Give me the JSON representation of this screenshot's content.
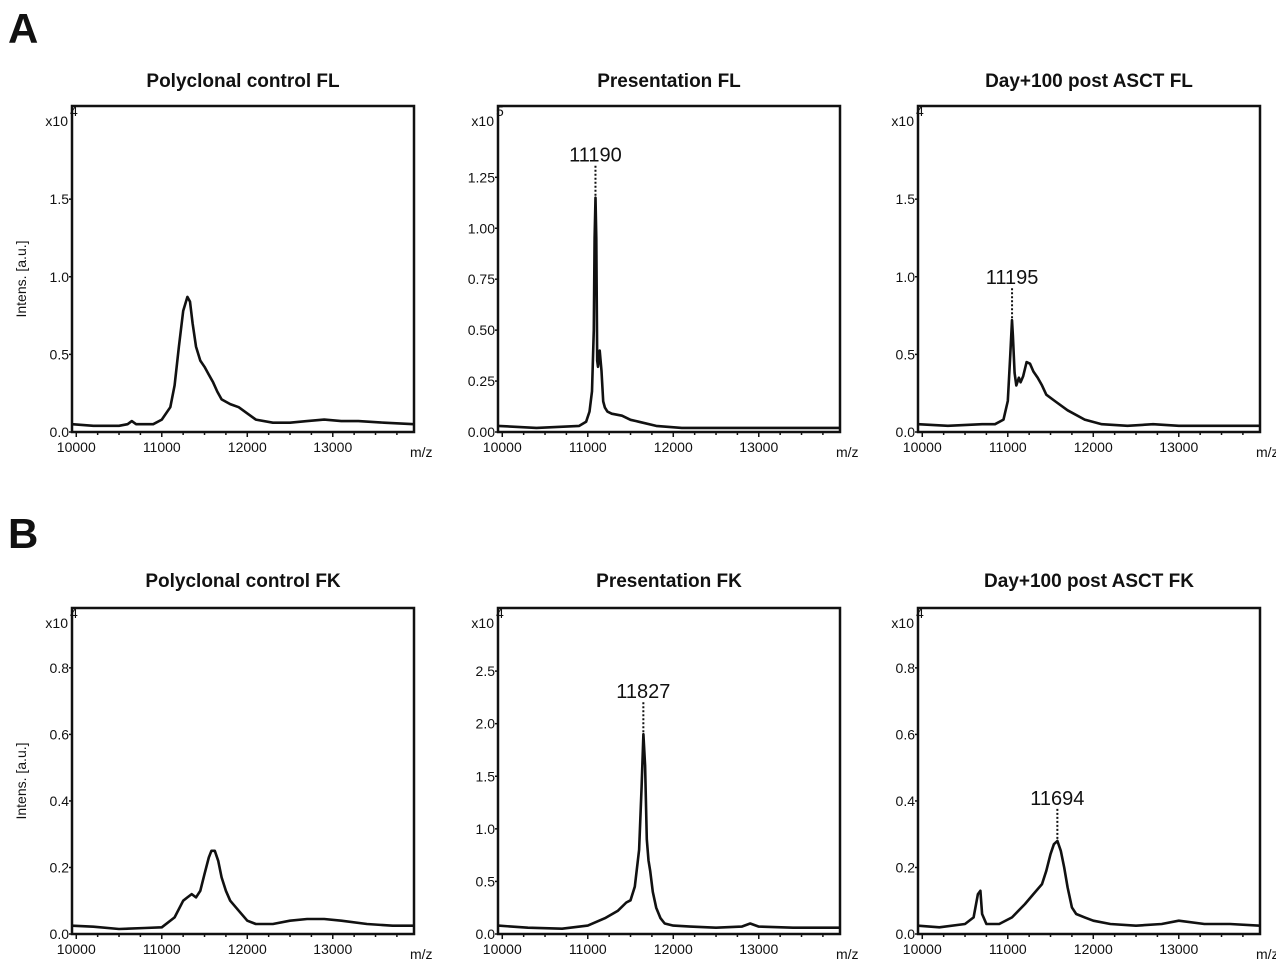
{
  "figure": {
    "panel_labels": [
      "A",
      "B"
    ]
  },
  "chart_data": [
    {
      "type": "line",
      "row": 0,
      "title": "Polyclonal control FL",
      "ylabel": "Intens. [a.u.]",
      "xlabel": "m/z",
      "multiplier": "x10",
      "exponent": "4",
      "xlim": [
        9950,
        13950
      ],
      "ylim": [
        0,
        2.1
      ],
      "xticks": [
        10000,
        11000,
        12000,
        13000
      ],
      "xtick_labels": [
        "10000",
        "11000",
        "12000",
        "13000"
      ],
      "yticks": [
        0,
        0.5,
        1.0,
        1.5
      ],
      "ytick_labels": [
        "0.0",
        "0.5",
        "1.0",
        "1.5"
      ],
      "annotation": null,
      "x": [
        9950,
        10200,
        10500,
        10600,
        10650,
        10700,
        10900,
        11000,
        11100,
        11150,
        11200,
        11250,
        11300,
        11330,
        11360,
        11400,
        11450,
        11500,
        11550,
        11600,
        11650,
        11700,
        11800,
        11900,
        12000,
        12100,
        12300,
        12500,
        12700,
        12900,
        13100,
        13300,
        13600,
        13950
      ],
      "y": [
        0.05,
        0.04,
        0.04,
        0.05,
        0.07,
        0.05,
        0.05,
        0.08,
        0.16,
        0.3,
        0.55,
        0.78,
        0.87,
        0.84,
        0.7,
        0.55,
        0.46,
        0.42,
        0.37,
        0.32,
        0.26,
        0.21,
        0.18,
        0.16,
        0.12,
        0.08,
        0.06,
        0.06,
        0.07,
        0.08,
        0.07,
        0.07,
        0.06,
        0.05
      ]
    },
    {
      "type": "line",
      "row": 0,
      "title": "Presentation FL",
      "ylabel": "",
      "xlabel": "m/z",
      "multiplier": "x10",
      "exponent": "5",
      "xlim": [
        9950,
        13950
      ],
      "ylim": [
        0,
        1.6
      ],
      "xticks": [
        10000,
        11000,
        12000,
        13000
      ],
      "xtick_labels": [
        "10000",
        "11000",
        "12000",
        "13000"
      ],
      "yticks": [
        0,
        0.25,
        0.5,
        0.75,
        1.0,
        1.25
      ],
      "ytick_labels": [
        "0.00",
        "0.25",
        "0.50",
        "0.75",
        "1.00",
        "1.25"
      ],
      "annotation": {
        "x": 11190,
        "label": "11190"
      },
      "x": [
        9950,
        10400,
        10900,
        10980,
        11020,
        11050,
        11070,
        11080,
        11090,
        11100,
        11110,
        11120,
        11140,
        11160,
        11180,
        11200,
        11230,
        11280,
        11400,
        11500,
        11600,
        11800,
        12100,
        12500,
        13000,
        13500,
        13950
      ],
      "y": [
        0.03,
        0.02,
        0.03,
        0.05,
        0.1,
        0.2,
        0.5,
        0.95,
        1.15,
        0.95,
        0.35,
        0.32,
        0.4,
        0.3,
        0.15,
        0.12,
        0.1,
        0.09,
        0.08,
        0.06,
        0.05,
        0.03,
        0.02,
        0.02,
        0.02,
        0.02,
        0.02
      ]
    },
    {
      "type": "line",
      "row": 0,
      "title": "Day+100 post ASCT FL",
      "ylabel": "",
      "xlabel": "m/z",
      "multiplier": "x10",
      "exponent": "4",
      "xlim": [
        9950,
        13950
      ],
      "ylim": [
        0,
        2.1
      ],
      "xticks": [
        10000,
        11000,
        12000,
        13000
      ],
      "xtick_labels": [
        "10000",
        "11000",
        "12000",
        "13000"
      ],
      "yticks": [
        0,
        0.5,
        1.0,
        1.5
      ],
      "ytick_labels": [
        "0.0",
        "0.5",
        "1.0",
        "1.5"
      ],
      "annotation": {
        "x": 11195,
        "label": "11195"
      },
      "x": [
        9950,
        10300,
        10700,
        10850,
        10950,
        11000,
        11030,
        11050,
        11060,
        11080,
        11100,
        11130,
        11150,
        11180,
        11220,
        11260,
        11300,
        11350,
        11400,
        11450,
        11550,
        11700,
        11900,
        12100,
        12400,
        12700,
        13000,
        13500,
        13950
      ],
      "y": [
        0.05,
        0.04,
        0.05,
        0.05,
        0.08,
        0.2,
        0.5,
        0.72,
        0.62,
        0.38,
        0.3,
        0.35,
        0.32,
        0.36,
        0.45,
        0.44,
        0.39,
        0.35,
        0.3,
        0.24,
        0.2,
        0.14,
        0.08,
        0.05,
        0.04,
        0.05,
        0.04,
        0.04,
        0.04
      ]
    },
    {
      "type": "line",
      "row": 1,
      "title": "Polyclonal control FK",
      "ylabel": "Intens. [a.u.]",
      "xlabel": "m/z",
      "multiplier": "x10",
      "exponent": "4",
      "xlim": [
        9950,
        13950
      ],
      "ylim": [
        0,
        0.98
      ],
      "xticks": [
        10000,
        11000,
        12000,
        13000
      ],
      "xtick_labels": [
        "10000",
        "11000",
        "12000",
        "13000"
      ],
      "yticks": [
        0,
        0.2,
        0.4,
        0.6,
        0.8
      ],
      "ytick_labels": [
        "0.0",
        "0.2",
        "0.4",
        "0.6",
        "0.8"
      ],
      "annotation": null,
      "x": [
        9950,
        10200,
        10500,
        10800,
        11000,
        11150,
        11250,
        11300,
        11350,
        11400,
        11450,
        11500,
        11550,
        11580,
        11620,
        11660,
        11700,
        11750,
        11800,
        11900,
        12000,
        12100,
        12300,
        12500,
        12700,
        12900,
        13100,
        13400,
        13700,
        13950
      ],
      "y": [
        0.025,
        0.022,
        0.015,
        0.018,
        0.02,
        0.05,
        0.1,
        0.11,
        0.12,
        0.11,
        0.13,
        0.18,
        0.23,
        0.25,
        0.25,
        0.22,
        0.17,
        0.13,
        0.1,
        0.07,
        0.04,
        0.03,
        0.03,
        0.04,
        0.045,
        0.045,
        0.04,
        0.03,
        0.025,
        0.025
      ]
    },
    {
      "type": "line",
      "row": 1,
      "title": "Presentation FK",
      "ylabel": "",
      "xlabel": "m/z",
      "multiplier": "x10",
      "exponent": "4",
      "xlim": [
        9950,
        13950
      ],
      "ylim": [
        0,
        3.1
      ],
      "xticks": [
        10000,
        11000,
        12000,
        13000
      ],
      "xtick_labels": [
        "10000",
        "11000",
        "12000",
        "13000"
      ],
      "yticks": [
        0,
        0.5,
        1.0,
        1.5,
        2.0,
        2.5
      ],
      "ytick_labels": [
        "0.0",
        "0.5",
        "1.0",
        "1.5",
        "2.0",
        "2.5"
      ],
      "annotation": {
        "x": 11827,
        "label": "11827"
      },
      "x": [
        9950,
        10300,
        10700,
        11000,
        11200,
        11350,
        11450,
        11500,
        11550,
        11600,
        11630,
        11650,
        11670,
        11690,
        11710,
        11730,
        11760,
        11800,
        11850,
        11900,
        12000,
        12200,
        12500,
        12800,
        12900,
        13000,
        13400,
        13950
      ],
      "y": [
        0.08,
        0.06,
        0.05,
        0.08,
        0.15,
        0.22,
        0.3,
        0.32,
        0.45,
        0.8,
        1.4,
        1.9,
        1.6,
        0.9,
        0.7,
        0.6,
        0.4,
        0.25,
        0.15,
        0.1,
        0.08,
        0.07,
        0.06,
        0.07,
        0.1,
        0.07,
        0.06,
        0.06
      ]
    },
    {
      "type": "line",
      "row": 1,
      "title": "Day+100 post ASCT FK",
      "ylabel": "",
      "xlabel": "m/z",
      "multiplier": "x10",
      "exponent": "4",
      "xlim": [
        9950,
        13950
      ],
      "ylim": [
        0,
        0.98
      ],
      "xticks": [
        10000,
        11000,
        12000,
        13000
      ],
      "xtick_labels": [
        "10000",
        "11000",
        "12000",
        "13000"
      ],
      "yticks": [
        0,
        0.2,
        0.4,
        0.6,
        0.8
      ],
      "ytick_labels": [
        "0.0",
        "0.2",
        "0.4",
        "0.6",
        "0.8"
      ],
      "annotation": {
        "x": 11694,
        "label": "11694"
      },
      "x": [
        9950,
        10200,
        10500,
        10600,
        10650,
        10680,
        10700,
        10750,
        10900,
        11050,
        11200,
        11300,
        11400,
        11450,
        11500,
        11540,
        11580,
        11620,
        11660,
        11700,
        11750,
        11800,
        11900,
        12000,
        12200,
        12500,
        12800,
        13000,
        13300,
        13600,
        13950
      ],
      "y": [
        0.025,
        0.02,
        0.03,
        0.05,
        0.12,
        0.13,
        0.06,
        0.03,
        0.03,
        0.05,
        0.09,
        0.12,
        0.15,
        0.19,
        0.24,
        0.27,
        0.28,
        0.25,
        0.2,
        0.14,
        0.08,
        0.06,
        0.05,
        0.04,
        0.03,
        0.025,
        0.03,
        0.04,
        0.03,
        0.03,
        0.025
      ]
    }
  ]
}
